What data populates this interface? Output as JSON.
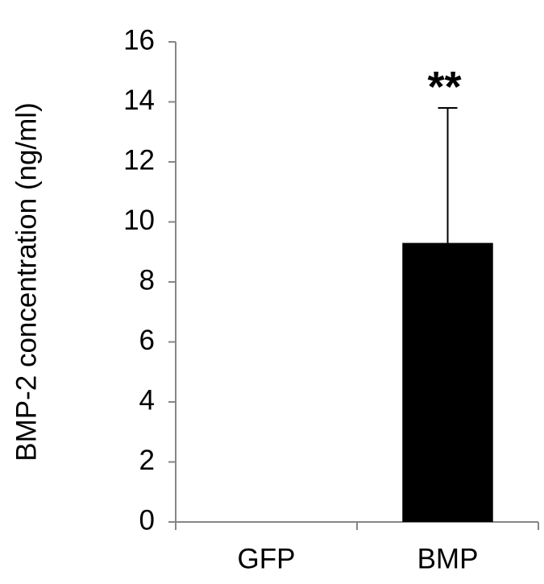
{
  "chart_data": {
    "type": "bar",
    "y_label": "BMP-2 concentration (ng/ml)",
    "categories": [
      "GFP",
      "BMP"
    ],
    "values": [
      0,
      9.3
    ],
    "errors": [
      null,
      4.5
    ],
    "color": "#000000",
    "annotation": "**",
    "ylim": [
      0,
      16
    ],
    "yticks": [
      0,
      2,
      4,
      6,
      8,
      10,
      12,
      14,
      16
    ],
    "grid": false
  }
}
